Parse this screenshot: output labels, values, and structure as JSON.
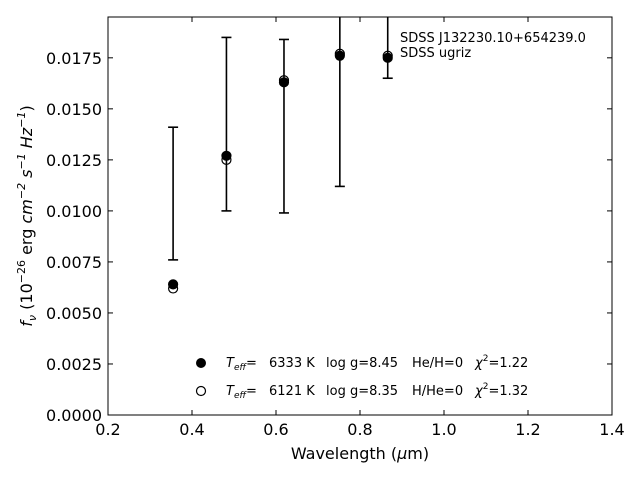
{
  "chart_data": {
    "type": "scatter",
    "title": "",
    "xlabel": {
      "pre": "Wavelength (",
      "mu": "μ",
      "post": "m)"
    },
    "ylabel": {
      "f": "f",
      "fsub": "ν",
      "open": " (10",
      "exp1": "−26",
      "mid": " erg ",
      "cm": "cm",
      "exp2": "−2",
      "s": " s",
      "exp3": "−1",
      "hz": " Hz",
      "exp4": "−1",
      "close": ")"
    },
    "xlim": [
      0.2,
      1.4
    ],
    "ylim": [
      0.0,
      0.0195
    ],
    "xticks": [
      "0.2",
      "0.4",
      "0.6",
      "0.8",
      "1.0",
      "1.2",
      "1.4"
    ],
    "yticks": [
      "0.0000",
      "0.0025",
      "0.0050",
      "0.0075",
      "0.0100",
      "0.0125",
      "0.0150",
      "0.0175"
    ],
    "annotations": [
      "SDSS J132230.10+654239.0",
      "SDSS ugriz"
    ],
    "observed_errorbars": [
      {
        "x": 0.355,
        "low": 0.0076,
        "high": 0.0141
      },
      {
        "x": 0.482,
        "low": 0.01,
        "high": 0.0185
      },
      {
        "x": 0.619,
        "low": 0.0099,
        "high": 0.0184
      },
      {
        "x": 0.752,
        "low": 0.0112,
        "high": 0.0197
      },
      {
        "x": 0.866,
        "low": 0.0165,
        "high": 0.0197
      }
    ],
    "series": [
      {
        "marker": "filled-circle",
        "x": [
          0.355,
          0.482,
          0.619,
          0.752,
          0.866
        ],
        "y": [
          0.0064,
          0.0127,
          0.0163,
          0.0176,
          0.0175
        ],
        "legend": {
          "teff": "6333 K",
          "logg": "log g=8.45",
          "comp": "He/H=0",
          "chi": "=1.22"
        }
      },
      {
        "marker": "open-circle",
        "x": [
          0.355,
          0.482,
          0.619,
          0.752,
          0.866
        ],
        "y": [
          0.0062,
          0.0125,
          0.0164,
          0.0177,
          0.0176
        ],
        "legend": {
          "teff": "6121 K",
          "logg": "log g=8.35",
          "comp": "H/He=0",
          "chi": "=1.32"
        }
      }
    ],
    "legend_labels": {
      "T": "T",
      "eff": "eff",
      "eq": "=",
      "chi": "χ",
      "sq": "2"
    },
    "legend_position": "lower-center",
    "grid": false
  }
}
